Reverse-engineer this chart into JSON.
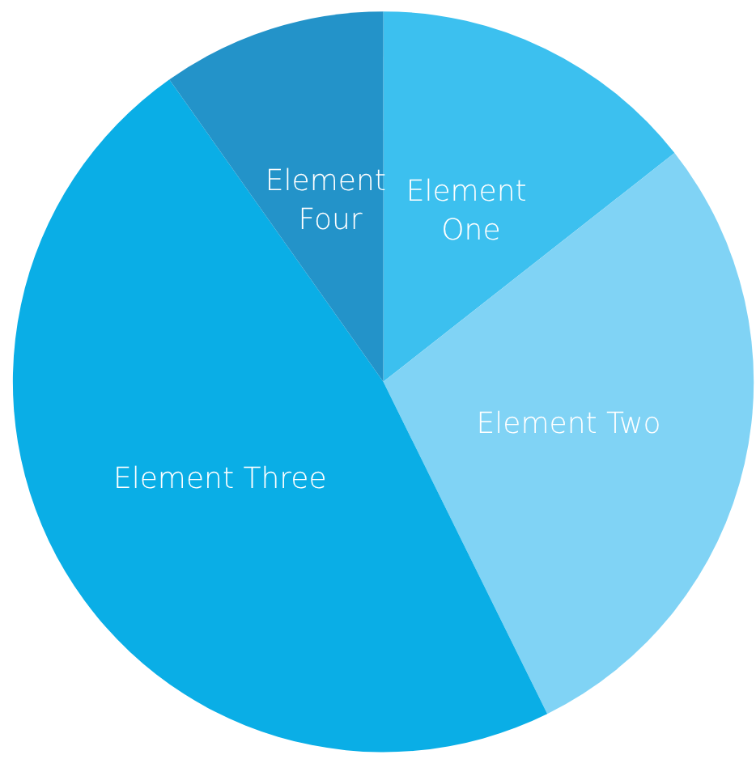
{
  "chart_data": {
    "type": "pie",
    "categories": [
      "Element One",
      "Element Two",
      "Element Three",
      "Element Four"
    ],
    "values": [
      14.4,
      28.3,
      47.5,
      9.8
    ],
    "colors": [
      "#3cc0ef",
      "#80d3f5",
      "#0aaee6",
      "#2393c9"
    ]
  }
}
